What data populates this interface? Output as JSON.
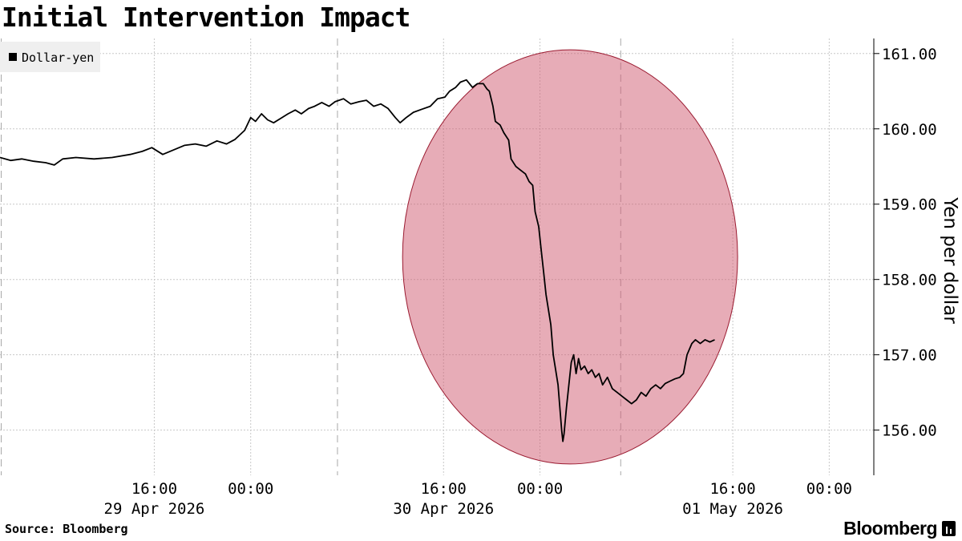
{
  "chart_data": {
    "type": "line",
    "title": "Initial Intervention Impact",
    "ylabel": "Yen per dollar",
    "xlabel": "",
    "ylim": [
      155.4,
      161.2
    ],
    "y_ticks": [
      {
        "value": 161,
        "label": "161.00"
      },
      {
        "value": 160,
        "label": "160.00"
      },
      {
        "value": 159,
        "label": "159.00"
      },
      {
        "value": 158,
        "label": "158.00"
      },
      {
        "value": 157,
        "label": "157.00"
      },
      {
        "value": 156,
        "label": "156.00"
      }
    ],
    "x_unit": "hours since 29 Apr 2026 00:00",
    "xlim": [
      -20.8,
      51.7
    ],
    "x_ticks": [
      {
        "hour": -8,
        "time": "16:00",
        "date": "29 Apr 2026"
      },
      {
        "hour": 0,
        "time": "00:00",
        "date": ""
      },
      {
        "hour": 16,
        "time": "16:00",
        "date": "30 Apr 2026"
      },
      {
        "hour": 24,
        "time": "00:00",
        "date": ""
      },
      {
        "hour": 40,
        "time": "16:00",
        "date": "01 May 2026"
      },
      {
        "hour": 48,
        "time": "00:00",
        "date": ""
      }
    ],
    "session_breaks": [
      -20.7,
      7.2,
      30.7
    ],
    "grid": true,
    "legend_position": "top-left",
    "series": [
      {
        "name": "Dollar-yen",
        "color": "#000000",
        "points": [
          [
            -20.8,
            159.62
          ],
          [
            -19.9,
            159.58
          ],
          [
            -19.0,
            159.6
          ],
          [
            -18.0,
            159.57
          ],
          [
            -17.0,
            159.55
          ],
          [
            -16.3,
            159.52
          ],
          [
            -15.6,
            159.6
          ],
          [
            -14.5,
            159.62
          ],
          [
            -13.0,
            159.6
          ],
          [
            -11.5,
            159.62
          ],
          [
            -10.0,
            159.66
          ],
          [
            -9.0,
            159.7
          ],
          [
            -8.2,
            159.75
          ],
          [
            -7.3,
            159.66
          ],
          [
            -6.4,
            159.72
          ],
          [
            -5.5,
            159.78
          ],
          [
            -4.6,
            159.8
          ],
          [
            -3.7,
            159.77
          ],
          [
            -2.8,
            159.84
          ],
          [
            -2.0,
            159.8
          ],
          [
            -1.3,
            159.86
          ],
          [
            -0.5,
            159.98
          ],
          [
            0.0,
            160.15
          ],
          [
            0.4,
            160.1
          ],
          [
            0.9,
            160.2
          ],
          [
            1.4,
            160.12
          ],
          [
            1.9,
            160.08
          ],
          [
            2.5,
            160.14
          ],
          [
            3.1,
            160.2
          ],
          [
            3.7,
            160.25
          ],
          [
            4.2,
            160.2
          ],
          [
            4.8,
            160.27
          ],
          [
            5.3,
            160.3
          ],
          [
            5.9,
            160.35
          ],
          [
            6.5,
            160.3
          ],
          [
            7.0,
            160.36
          ],
          [
            7.7,
            160.4
          ],
          [
            8.3,
            160.33
          ],
          [
            9.0,
            160.36
          ],
          [
            9.6,
            160.38
          ],
          [
            10.2,
            160.3
          ],
          [
            10.8,
            160.33
          ],
          [
            11.4,
            160.27
          ],
          [
            12.0,
            160.15
          ],
          [
            12.4,
            160.08
          ],
          [
            12.9,
            160.15
          ],
          [
            13.5,
            160.22
          ],
          [
            14.2,
            160.26
          ],
          [
            14.9,
            160.3
          ],
          [
            15.5,
            160.4
          ],
          [
            16.1,
            160.42
          ],
          [
            16.5,
            160.5
          ],
          [
            17.0,
            160.55
          ],
          [
            17.4,
            160.62
          ],
          [
            17.9,
            160.65
          ],
          [
            18.4,
            160.55
          ],
          [
            18.8,
            160.6
          ],
          [
            19.3,
            160.6
          ],
          [
            19.6,
            160.53
          ],
          [
            19.8,
            160.5
          ],
          [
            20.1,
            160.3
          ],
          [
            20.3,
            160.1
          ],
          [
            20.7,
            160.05
          ],
          [
            21.0,
            159.95
          ],
          [
            21.4,
            159.85
          ],
          [
            21.6,
            159.6
          ],
          [
            22.0,
            159.5
          ],
          [
            22.4,
            159.45
          ],
          [
            22.8,
            159.4
          ],
          [
            23.1,
            159.3
          ],
          [
            23.4,
            159.25
          ],
          [
            23.6,
            158.9
          ],
          [
            23.9,
            158.7
          ],
          [
            24.1,
            158.4
          ],
          [
            24.3,
            158.1
          ],
          [
            24.5,
            157.8
          ],
          [
            24.7,
            157.6
          ],
          [
            24.9,
            157.4
          ],
          [
            25.1,
            157.0
          ],
          [
            25.3,
            156.8
          ],
          [
            25.5,
            156.6
          ],
          [
            25.7,
            156.2
          ],
          [
            25.8,
            156.0
          ],
          [
            25.9,
            155.85
          ],
          [
            26.0,
            155.95
          ],
          [
            26.2,
            156.3
          ],
          [
            26.4,
            156.6
          ],
          [
            26.6,
            156.9
          ],
          [
            26.8,
            157.0
          ],
          [
            27.0,
            156.75
          ],
          [
            27.2,
            156.95
          ],
          [
            27.4,
            156.8
          ],
          [
            27.7,
            156.85
          ],
          [
            28.0,
            156.75
          ],
          [
            28.3,
            156.8
          ],
          [
            28.6,
            156.7
          ],
          [
            28.9,
            156.75
          ],
          [
            29.2,
            156.6
          ],
          [
            29.6,
            156.7
          ],
          [
            30.0,
            156.55
          ],
          [
            30.4,
            156.5
          ],
          [
            30.8,
            156.45
          ],
          [
            31.2,
            156.4
          ],
          [
            31.6,
            156.35
          ],
          [
            32.0,
            156.4
          ],
          [
            32.4,
            156.5
          ],
          [
            32.8,
            156.45
          ],
          [
            33.2,
            156.55
          ],
          [
            33.6,
            156.6
          ],
          [
            34.0,
            156.55
          ],
          [
            34.4,
            156.62
          ],
          [
            34.8,
            156.65
          ],
          [
            35.2,
            156.68
          ],
          [
            35.6,
            156.7
          ],
          [
            35.9,
            156.75
          ],
          [
            36.2,
            157.0
          ],
          [
            36.6,
            157.15
          ],
          [
            36.9,
            157.2
          ],
          [
            37.3,
            157.15
          ],
          [
            37.7,
            157.2
          ],
          [
            38.1,
            157.17
          ],
          [
            38.5,
            157.2
          ]
        ]
      }
    ],
    "highlight": {
      "shape": "ellipse",
      "color": "#d05a70",
      "opacity": 0.5,
      "center_x": 26.5,
      "center_y": 158.3,
      "radius_x": 13.9,
      "radius_y": 2.75
    }
  },
  "footer": {
    "source": "Source: Bloomberg",
    "brand": "Bloomberg",
    "brand_icon": "bloomberg-terminal-icon"
  }
}
